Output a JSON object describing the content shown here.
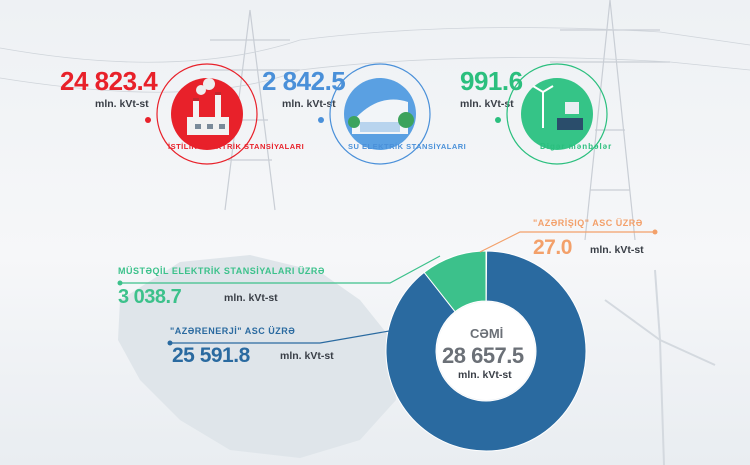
{
  "sources": [
    {
      "value": "24 823.4",
      "unit": "mln. kVt-st",
      "label": "İSTİLİK ELEKTRİK STANSİYALARI",
      "color": "#e8212a",
      "icon": "thermal-plant-icon"
    },
    {
      "value": "2 842.5",
      "unit": "mln. kVt-st",
      "label": "SU ELEKTRİK STANSİYALARI",
      "color": "#4a90d9",
      "icon": "hydro-plant-icon"
    },
    {
      "value": "991.6",
      "unit": "mln. kVt-st",
      "label": "Digər mənbələr",
      "color": "#2bbf7e",
      "icon": "renewables-icon"
    }
  ],
  "chart_data": {
    "type": "pie",
    "title": "",
    "slices": [
      {
        "name": "\"AZƏRENERJİ\" ASC ÜZRƏ",
        "value": 25591.8,
        "color": "#2a6aa0"
      },
      {
        "name": "MÜSTƏQİL ELEKTRİK STANSİYALARI ÜZRƏ",
        "value": 3038.7,
        "color": "#3cc18b"
      },
      {
        "name": "\"AZƏRİŞIQ\" ASC ÜZRƏ",
        "value": 27.0,
        "color": "#f3a06a"
      }
    ],
    "total": {
      "label": "CƏMİ",
      "value": "28 657.5",
      "unit": "mln. kVt-st"
    }
  },
  "labels": {
    "azerenerji": {
      "caption": "\"AZƏRENERJİ\" ASC ÜZRƏ",
      "value": "25 591.8",
      "unit": "mln. kVt-st"
    },
    "musteqil": {
      "caption": "MÜSTƏQİL ELEKTRİK STANSİYALARI ÜZRƏ",
      "value": "3 038.7",
      "unit": "mln. kVt-st"
    },
    "azerisiq": {
      "caption": "\"AZƏRİŞIQ\" ASC ÜZRƏ",
      "value": "27.0",
      "unit": "mln. kVt-st"
    }
  }
}
